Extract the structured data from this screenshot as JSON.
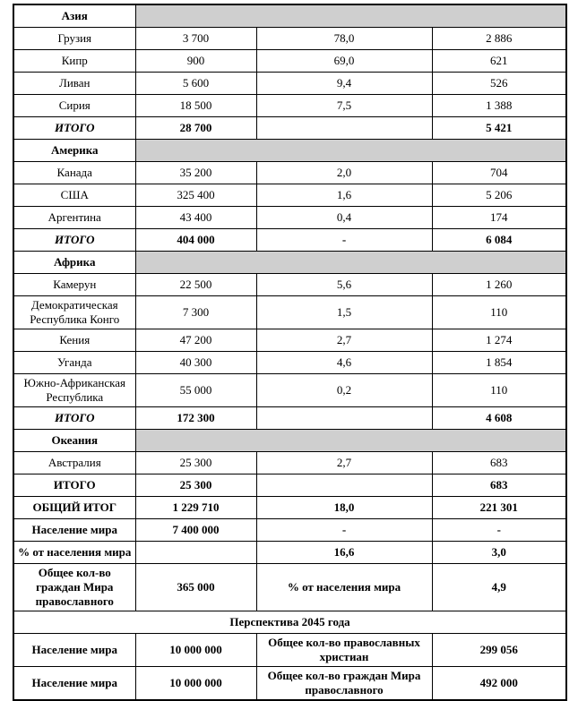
{
  "colors": {
    "section_fill": "#cfcfcf",
    "border": "#000000",
    "text": "#000000"
  },
  "table": {
    "rows": [
      {
        "type": "section",
        "label": "Азия"
      },
      {
        "type": "data",
        "cells": [
          "Грузия",
          "3 700",
          "78,0",
          "2 886"
        ]
      },
      {
        "type": "data",
        "cells": [
          "Кипр",
          "900",
          "69,0",
          "621"
        ]
      },
      {
        "type": "data",
        "cells": [
          "Ливан",
          "5 600",
          "9,4",
          "526"
        ]
      },
      {
        "type": "data",
        "cells": [
          "Сирия",
          "18 500",
          "7,5",
          "1 388"
        ]
      },
      {
        "type": "total_i",
        "cells": [
          "ИТОГО",
          "28 700",
          "",
          "5 421"
        ]
      },
      {
        "type": "section",
        "label": "Америка"
      },
      {
        "type": "data",
        "cells": [
          "Канада",
          "35 200",
          "2,0",
          "704"
        ]
      },
      {
        "type": "data",
        "cells": [
          "США",
          "325 400",
          "1,6",
          "5 206"
        ]
      },
      {
        "type": "data",
        "cells": [
          "Аргентина",
          "43 400",
          "0,4",
          "174"
        ]
      },
      {
        "type": "total_i",
        "cells": [
          "ИТОГО",
          "404 000",
          "-",
          "6 084"
        ]
      },
      {
        "type": "section",
        "label": "Африка"
      },
      {
        "type": "data",
        "cells": [
          "Камерун",
          "22 500",
          "5,6",
          "1 260"
        ]
      },
      {
        "type": "data",
        "cells": [
          "Демократическая\nРеспублика Конго",
          "7 300",
          "1,5",
          "110"
        ]
      },
      {
        "type": "data",
        "cells": [
          "Кения",
          "47 200",
          "2,7",
          "1 274"
        ]
      },
      {
        "type": "data",
        "cells": [
          "Уганда",
          "40 300",
          "4,6",
          "1 854"
        ]
      },
      {
        "type": "data",
        "cells": [
          "Южно-Африканская\nРеспублика",
          "55 000",
          "0,2",
          "110"
        ]
      },
      {
        "type": "total_i",
        "cells": [
          "ИТОГО",
          "172 300",
          "",
          "4 608"
        ]
      },
      {
        "type": "section",
        "label": "Океания"
      },
      {
        "type": "data",
        "cells": [
          "Австралия",
          "25 300",
          "2,7",
          "683"
        ]
      },
      {
        "type": "total",
        "cells": [
          "ИТОГО",
          "25 300",
          "",
          "683"
        ]
      },
      {
        "type": "total",
        "cells": [
          "ОБЩИЙ ИТОГ",
          "1 229 710",
          "18,0",
          "221 301"
        ]
      },
      {
        "type": "bold",
        "cells": [
          "Население мира",
          "7 400 000",
          "-",
          "-"
        ]
      },
      {
        "type": "bold",
        "cells": [
          "% от населения мира",
          "",
          "16,6",
          "3,0"
        ]
      },
      {
        "type": "bold",
        "cells": [
          "Общее кол-во\nграждан Мира\nправославного",
          "365 000",
          "% от населения мира",
          "4,9"
        ]
      },
      {
        "type": "banner",
        "label": "Перспектива 2045 года"
      },
      {
        "type": "bold",
        "cells": [
          "Население мира",
          "10 000 000",
          "Общее кол-во православных\nхристиан",
          "299 056"
        ]
      },
      {
        "type": "bold",
        "cells": [
          "Население мира",
          "10 000 000",
          "Общее кол-во граждан Мира\nправославного",
          "492 000"
        ]
      }
    ]
  }
}
